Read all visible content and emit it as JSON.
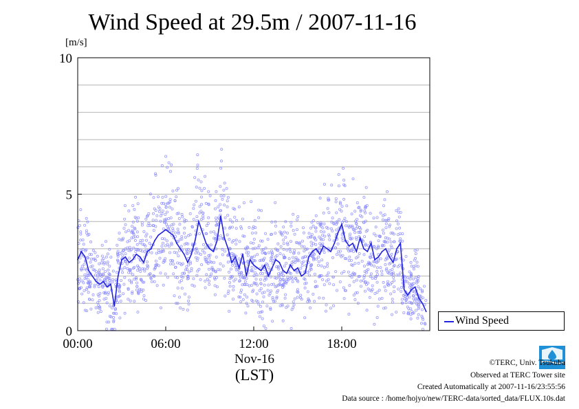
{
  "chart_data": {
    "type": "line",
    "title": "Wind Speed at 29.5m / 2007-11-16",
    "ylabel": "[m/s]",
    "xlabel": "(LST)",
    "date_label": "Nov-16",
    "ylim": [
      0,
      10
    ],
    "xlim_hours": [
      0,
      24
    ],
    "y_ticks": [
      0,
      5,
      10
    ],
    "y_grid": [
      1,
      2,
      3,
      4,
      5,
      6,
      7,
      8,
      9
    ],
    "x_ticks": [
      {
        "hour": 0,
        "label": "00:00"
      },
      {
        "hour": 6,
        "label": "06:00"
      },
      {
        "hour": 12,
        "label": "12:00"
      },
      {
        "hour": 18,
        "label": "18:00"
      }
    ],
    "grid": true,
    "legend_position": "bottom-right outside",
    "series": [
      {
        "name": "Wind Speed",
        "color": "#2222dd",
        "raw_color": "#8888ff",
        "x": [
          0.0,
          0.25,
          0.5,
          0.75,
          1.0,
          1.25,
          1.5,
          1.75,
          2.0,
          2.25,
          2.5,
          2.75,
          3.0,
          3.25,
          3.5,
          3.75,
          4.0,
          4.25,
          4.5,
          4.75,
          5.0,
          5.25,
          5.5,
          5.75,
          6.0,
          6.25,
          6.5,
          6.75,
          7.0,
          7.25,
          7.5,
          7.75,
          8.0,
          8.25,
          8.5,
          8.75,
          9.0,
          9.25,
          9.5,
          9.75,
          10.0,
          10.25,
          10.5,
          10.75,
          11.0,
          11.25,
          11.5,
          11.75,
          12.0,
          12.25,
          12.5,
          12.75,
          13.0,
          13.25,
          13.5,
          13.75,
          14.0,
          14.25,
          14.5,
          14.75,
          15.0,
          15.25,
          15.5,
          15.75,
          16.0,
          16.25,
          16.5,
          16.75,
          17.0,
          17.25,
          17.5,
          17.75,
          18.0,
          18.25,
          18.5,
          18.75,
          19.0,
          19.25,
          19.5,
          19.75,
          20.0,
          20.25,
          20.5,
          20.75,
          21.0,
          21.25,
          21.5,
          21.75,
          22.0,
          22.25,
          22.5,
          22.75,
          23.0,
          23.25,
          23.5,
          23.75
        ],
        "values": [
          2.6,
          2.9,
          2.7,
          2.2,
          2.0,
          1.8,
          1.7,
          1.8,
          1.6,
          1.7,
          0.9,
          2.0,
          2.6,
          2.7,
          2.5,
          2.6,
          2.8,
          2.7,
          2.5,
          2.9,
          3.0,
          3.3,
          3.5,
          3.6,
          3.7,
          3.6,
          3.5,
          3.2,
          3.0,
          2.8,
          2.5,
          2.8,
          3.3,
          4.0,
          3.6,
          3.2,
          3.0,
          2.9,
          3.3,
          4.2,
          3.4,
          3.0,
          2.5,
          2.7,
          2.3,
          2.8,
          2.0,
          2.6,
          2.4,
          2.3,
          2.2,
          2.4,
          2.0,
          2.3,
          2.6,
          2.5,
          2.2,
          2.1,
          2.4,
          2.2,
          2.3,
          2.0,
          2.1,
          2.7,
          2.9,
          3.0,
          2.8,
          3.1,
          3.0,
          2.9,
          3.2,
          3.6,
          3.9,
          3.3,
          3.1,
          3.2,
          2.9,
          3.4,
          3.0,
          2.9,
          3.2,
          2.6,
          2.7,
          2.9,
          3.0,
          2.7,
          2.5,
          3.0,
          3.2,
          1.5,
          1.3,
          1.5,
          1.6,
          1.2,
          1.0,
          0.7
        ]
      }
    ]
  },
  "legend": {
    "label": "Wind Speed"
  },
  "credits": {
    "copyright": "©TERC, Univ. Tsukuba",
    "observed": "Observed at TERC Tower site",
    "created": "Created Automatically at 2007-11-16/23:55:56",
    "source": "Data source : /home/hojyo/new/TERC-data/sorted_data/FLUX.10s.dat"
  },
  "logo": {
    "text": "TERC",
    "color": "#1f8fd6"
  }
}
